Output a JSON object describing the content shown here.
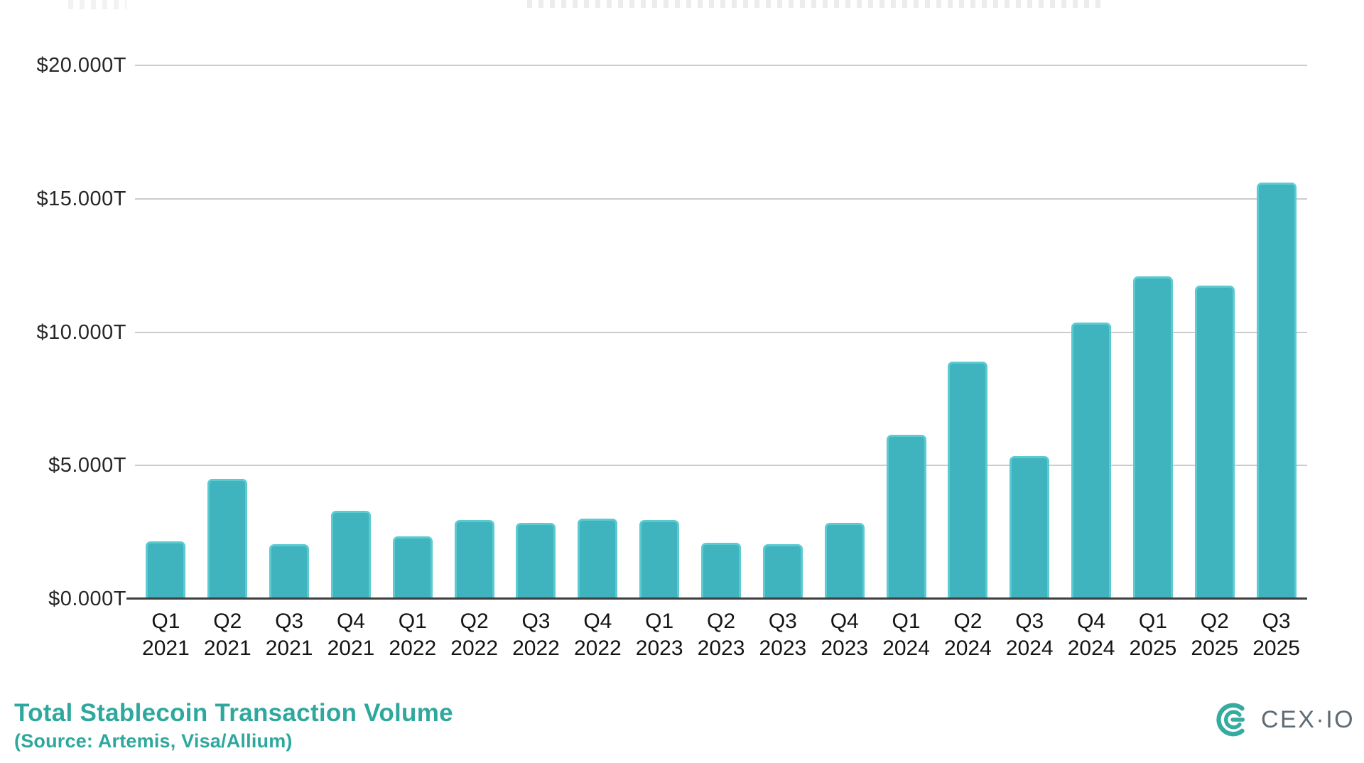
{
  "chart_data": {
    "type": "bar",
    "title": "Total Stablecoin Transaction Volume",
    "source_note": "(Source: Artemis, Visa/Allium)",
    "unit": "trillions USD",
    "categories": [
      {
        "quarter": "Q1",
        "year": "2021"
      },
      {
        "quarter": "Q2",
        "year": "2021"
      },
      {
        "quarter": "Q3",
        "year": "2021"
      },
      {
        "quarter": "Q4",
        "year": "2021"
      },
      {
        "quarter": "Q1",
        "year": "2022"
      },
      {
        "quarter": "Q2",
        "year": "2022"
      },
      {
        "quarter": "Q3",
        "year": "2022"
      },
      {
        "quarter": "Q4",
        "year": "2022"
      },
      {
        "quarter": "Q1",
        "year": "2023"
      },
      {
        "quarter": "Q2",
        "year": "2023"
      },
      {
        "quarter": "Q3",
        "year": "2023"
      },
      {
        "quarter": "Q4",
        "year": "2023"
      },
      {
        "quarter": "Q1",
        "year": "2024"
      },
      {
        "quarter": "Q2",
        "year": "2024"
      },
      {
        "quarter": "Q3",
        "year": "2024"
      },
      {
        "quarter": "Q4",
        "year": "2024"
      },
      {
        "quarter": "Q1",
        "year": "2025"
      },
      {
        "quarter": "Q2",
        "year": "2025"
      },
      {
        "quarter": "Q3",
        "year": "2025"
      }
    ],
    "values": [
      2.15,
      4.5,
      2.05,
      3.3,
      2.35,
      2.95,
      2.85,
      3.0,
      2.95,
      2.1,
      2.05,
      2.85,
      6.15,
      8.9,
      5.35,
      10.35,
      12.1,
      11.75,
      15.6
    ],
    "ylim": [
      0,
      20
    ],
    "y_ticks": [
      {
        "value": 20,
        "label": "$20.000T"
      },
      {
        "value": 15,
        "label": "$15.000T"
      },
      {
        "value": 10,
        "label": "$10.000T"
      },
      {
        "value": 5,
        "label": "$5.000T"
      },
      {
        "value": 0,
        "label": "$0.000T"
      }
    ],
    "grid": true,
    "legend_position": "none",
    "bar_color": "#3fb4be",
    "bar_edge_color": "#5bcad1",
    "gridline_color": "#cccccc",
    "axis_color": "#3e3e3e"
  },
  "footer": {
    "title": "Total Stablecoin Transaction Volume",
    "source": "(Source: Artemis, Visa/Allium)",
    "accent_color": "#2ea89d"
  },
  "logo": {
    "text": "CEX·IO",
    "mark_color": "#36aba1",
    "text_color": "#5d6b74"
  }
}
